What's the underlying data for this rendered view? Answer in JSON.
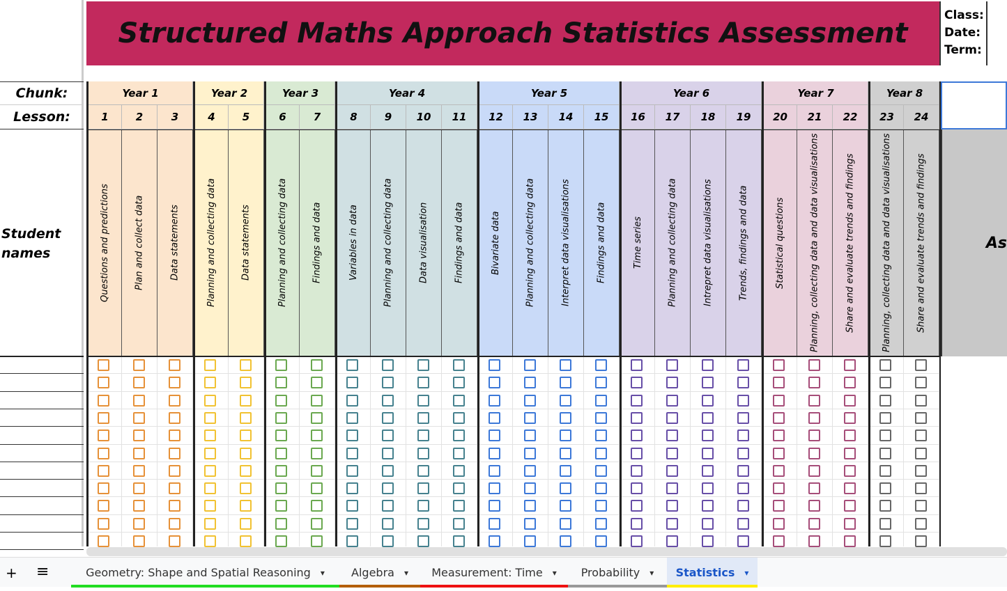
{
  "title": "Structured Maths Approach Statistics Assessment",
  "meta": {
    "class": "Class:",
    "date": "Date:",
    "term": "Term:"
  },
  "labels": {
    "chunk": "Chunk:",
    "lesson": "Lesson:",
    "students": "Student names",
    "right_partial": "As"
  },
  "chunks": [
    {
      "name": "Year 1",
      "bg": "#fce5cd",
      "check": "#e69138",
      "lessons": [
        {
          "n": "1",
          "t": "Questions and predictions"
        },
        {
          "n": "2",
          "t": "Plan and collect data"
        },
        {
          "n": "3",
          "t": "Data statements"
        }
      ]
    },
    {
      "name": "Year 2",
      "bg": "#fff2cc",
      "check": "#f1c232",
      "lessons": [
        {
          "n": "4",
          "t": "Planning and collecting data"
        },
        {
          "n": "5",
          "t": "Data statements"
        }
      ]
    },
    {
      "name": "Year 3",
      "bg": "#d9ead3",
      "check": "#6aa84f",
      "lessons": [
        {
          "n": "6",
          "t": "Planning and collecting data"
        },
        {
          "n": "7",
          "t": "Findings and data"
        }
      ]
    },
    {
      "name": "Year 4",
      "bg": "#d0e0e3",
      "check": "#45818e",
      "lessons": [
        {
          "n": "8",
          "t": "Variables in data"
        },
        {
          "n": "9",
          "t": "Planning and collecting data"
        },
        {
          "n": "10",
          "t": "Data visualisation"
        },
        {
          "n": "11",
          "t": "Findings and data"
        }
      ]
    },
    {
      "name": "Year 5",
      "bg": "#c9daf8",
      "check": "#3c78d8",
      "lessons": [
        {
          "n": "12",
          "t": "Bivariate data"
        },
        {
          "n": "13",
          "t": "Planning and collecting data"
        },
        {
          "n": "14",
          "t": "Interpret data visualisations"
        },
        {
          "n": "15",
          "t": "Findings and data"
        }
      ]
    },
    {
      "name": "Year 6",
      "bg": "#d9d2e9",
      "check": "#674ea7",
      "lessons": [
        {
          "n": "16",
          "t": "Time series"
        },
        {
          "n": "17",
          "t": "Planning and collecting data"
        },
        {
          "n": "18",
          "t": "Intrepret data visualisations"
        },
        {
          "n": "19",
          "t": "Trends, findings and data"
        }
      ]
    },
    {
      "name": "Year 7",
      "bg": "#ead1dc",
      "check": "#a64d79",
      "lessons": [
        {
          "n": "20",
          "t": "Statistical questions"
        },
        {
          "n": "21",
          "t": "Planning, collecting data and data visualisations"
        },
        {
          "n": "22",
          "t": "Share and evaluate trends and findings"
        }
      ]
    },
    {
      "name": "Year 8",
      "bg": "#d0d0d0",
      "check": "#666666",
      "lessons": [
        {
          "n": "23",
          "t": "Planning, collecting data and data visualisations"
        },
        {
          "n": "24",
          "t": "Share and evaluate trends and findings"
        }
      ]
    }
  ],
  "tabs": [
    {
      "label": "Geometry: Shape and Spatial Reasoning",
      "color": "#22dd22",
      "active": false
    },
    {
      "label": "Algebra",
      "color": "#b45f06",
      "active": false
    },
    {
      "label": "Measurement: Time",
      "color": "#ee1111",
      "active": false
    },
    {
      "label": "Probability",
      "color": "#999999",
      "active": false
    },
    {
      "label": "Statistics",
      "color": "#ffee00",
      "active": true
    }
  ],
  "icons": {
    "add": "+",
    "menu": "≡",
    "dropdown": "▾"
  }
}
